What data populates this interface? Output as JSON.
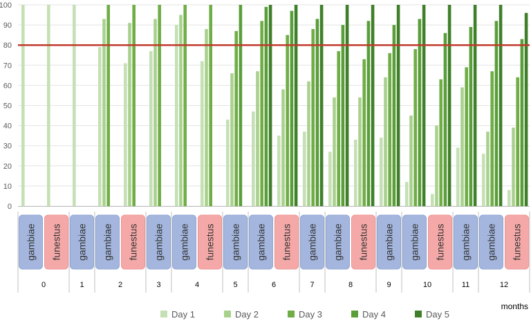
{
  "chart_data": {
    "type": "bar",
    "ylim": [
      0,
      100
    ],
    "yticks": [
      0,
      10,
      20,
      30,
      40,
      50,
      60,
      70,
      80,
      90,
      100
    ],
    "threshold": {
      "value": 80,
      "color": "#c0392b"
    },
    "xlabel": "months",
    "legend_position": "bottom",
    "series": [
      {
        "name": "Day 1",
        "color": "#c5e0b4"
      },
      {
        "name": "Day 2",
        "color": "#a9d18e"
      },
      {
        "name": "Day 3",
        "color": "#70ad47"
      },
      {
        "name": "Day 4",
        "color": "#5a9e3a"
      },
      {
        "name": "Day 5",
        "color": "#3f7f2a"
      }
    ],
    "species_styles": {
      "gambiae": {
        "fill": "#a4b6de",
        "stroke": "#8fa5d3"
      },
      "funestus": {
        "fill": "#f4a9a8",
        "stroke": "#ec9392"
      }
    },
    "months": [
      {
        "label": "0",
        "groups": [
          {
            "species": "gambiae",
            "values": [
              100,
              null,
              null,
              null,
              null
            ]
          },
          {
            "species": "funestus",
            "values": [
              100,
              null,
              null,
              null,
              null
            ]
          }
        ]
      },
      {
        "label": "1",
        "groups": [
          {
            "species": "gambiae",
            "values": [
              100,
              null,
              null,
              null,
              null
            ]
          }
        ]
      },
      {
        "label": "2",
        "groups": [
          {
            "species": "gambiae",
            "values": [
              79,
              93,
              100,
              null,
              null
            ]
          },
          {
            "species": "funestus",
            "values": [
              71,
              91,
              100,
              null,
              null
            ]
          }
        ]
      },
      {
        "label": "3",
        "groups": [
          {
            "species": "gambiae",
            "values": [
              77,
              93,
              100,
              null,
              null
            ]
          }
        ]
      },
      {
        "label": "4",
        "groups": [
          {
            "species": "gambiae",
            "values": [
              90,
              95,
              100,
              null,
              null
            ]
          },
          {
            "species": "funestus",
            "values": [
              72,
              88,
              100,
              null,
              null
            ]
          }
        ]
      },
      {
        "label": "5",
        "groups": [
          {
            "species": "gambiae",
            "values": [
              43,
              66,
              87,
              100,
              null
            ]
          }
        ]
      },
      {
        "label": "6",
        "groups": [
          {
            "species": "gambiae",
            "values": [
              47,
              67,
              92,
              99,
              100
            ]
          },
          {
            "species": "funestus",
            "values": [
              35,
              58,
              85,
              97,
              100
            ]
          }
        ]
      },
      {
        "label": "7",
        "groups": [
          {
            "species": "gambiae",
            "values": [
              37,
              62,
              88,
              93,
              100
            ]
          }
        ]
      },
      {
        "label": "8",
        "groups": [
          {
            "species": "gambiae",
            "values": [
              27,
              54,
              77,
              90,
              100
            ]
          },
          {
            "species": "funestus",
            "values": [
              33,
              54,
              73,
              92,
              100
            ]
          }
        ]
      },
      {
        "label": "9",
        "groups": [
          {
            "species": "gambiae",
            "values": [
              34,
              64,
              76,
              90,
              100
            ]
          }
        ]
      },
      {
        "label": "10",
        "groups": [
          {
            "species": "gambiae",
            "values": [
              12,
              45,
              78,
              93,
              100
            ]
          },
          {
            "species": "funestus",
            "values": [
              6,
              40,
              63,
              86,
              100
            ]
          }
        ]
      },
      {
        "label": "11",
        "groups": [
          {
            "species": "gambiae",
            "values": [
              29,
              59,
              69,
              89,
              100
            ]
          }
        ]
      },
      {
        "label": "12",
        "groups": [
          {
            "species": "gambiae",
            "values": [
              26,
              37,
              67,
              92,
              100
            ]
          },
          {
            "species": "funestus",
            "values": [
              8,
              39,
              64,
              83,
              96
            ]
          }
        ]
      }
    ]
  }
}
